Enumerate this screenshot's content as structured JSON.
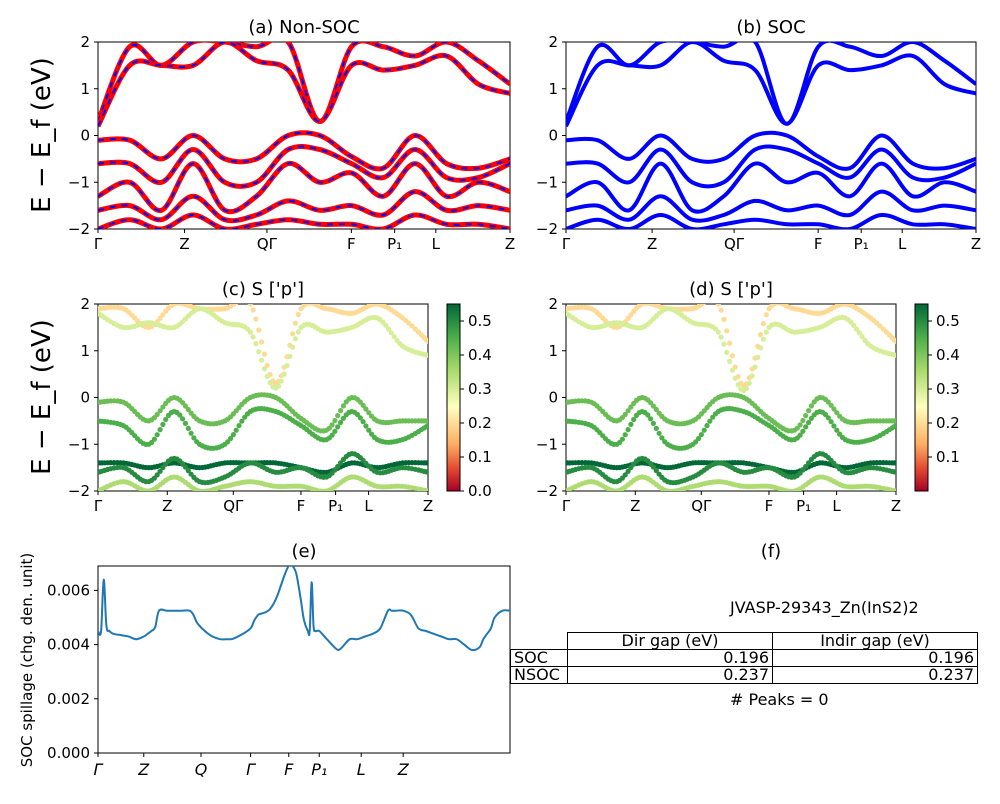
{
  "figure": {
    "ylabel": "E − E_f (eV)",
    "colors": {
      "soc_band": "#0000ff",
      "nonsoc_band": "#ff0000",
      "spillage_line": "#1f77b4"
    }
  },
  "panels": [
    {
      "id": "a",
      "title": "(a) Non-SOC",
      "yticks": [
        "2",
        "1",
        "0",
        "−1",
        "−2"
      ],
      "kpoint_labels": [
        "Γ",
        "Z",
        "QΓ",
        "F",
        "P₁",
        "L",
        "Z"
      ]
    },
    {
      "id": "b",
      "title": "(b) SOC",
      "yticks": [
        "2",
        "1",
        "0",
        "−1",
        "−2"
      ],
      "kpoint_labels": [
        "Γ",
        "Z",
        "QΓ",
        "F",
        "P₁",
        "L",
        "Z"
      ]
    },
    {
      "id": "c",
      "title": "(c)  S ['p']",
      "yticks": [
        "2",
        "1",
        "0",
        "−1",
        "−2"
      ],
      "kpoint_labels": [
        "Γ",
        "Z",
        "QΓ",
        "F",
        "P₁",
        "L",
        "Z"
      ],
      "colorbar_ticks": [
        "0.5",
        "0.4",
        "0.3",
        "0.2",
        "0.1",
        "0.0"
      ]
    },
    {
      "id": "d",
      "title": "(d) S ['p']",
      "yticks": [
        "2",
        "1",
        "0",
        "−1",
        "−2"
      ],
      "kpoint_labels": [
        "Γ",
        "Z",
        "QΓ",
        "F",
        "P₁",
        "L",
        "Z"
      ],
      "colorbar_ticks": [
        "0.5",
        "0.4",
        "0.3",
        "0.2",
        "0.1"
      ]
    },
    {
      "id": "e",
      "title": "(e)",
      "ylabel": "SOC spillage (chg. den. unit)",
      "yticks": [
        "0.006",
        "0.004",
        "0.002",
        "0.000"
      ],
      "kpoint_labels": [
        "Γ",
        "Z",
        "Q",
        "Γ",
        "F",
        "P₁",
        "L",
        "Z"
      ]
    },
    {
      "id": "f",
      "title": "(f)"
    }
  ],
  "info": {
    "material": "JVASP-29343_Zn(InS2)2",
    "table": {
      "headers": [
        "Dir gap (eV)",
        "Indir gap (eV)"
      ],
      "rows": [
        {
          "label": "SOC",
          "dir": "0.196",
          "indir": "0.196"
        },
        {
          "label": "NSOC",
          "dir": "0.237",
          "indir": "0.237"
        }
      ]
    },
    "peaks": "# Peaks = 0"
  },
  "chart_data": [
    {
      "panel": "a",
      "type": "line",
      "title": "(a) Non-SOC",
      "xlabel": "",
      "ylabel": "E − E_f (eV)",
      "ylim": [
        -2,
        2
      ],
      "x_ticks": [
        "Γ",
        "Z",
        "QΓ",
        "F",
        "P₁",
        "L",
        "Z"
      ],
      "series": [
        {
          "values": [
            0.3,
            1.9,
            1.5,
            2.0,
            2.0,
            1.9,
            2.0,
            0.3,
            1.9,
            1.9,
            1.7,
            2.0,
            1.6,
            1.1
          ]
        },
        {
          "values": [
            0.2,
            1.5,
            1.5,
            1.5,
            2.0,
            1.6,
            1.4,
            0.3,
            1.5,
            1.4,
            1.5,
            1.7,
            1.1,
            0.9
          ]
        },
        {
          "values": [
            -0.1,
            -0.1,
            -0.5,
            0.0,
            -0.5,
            -0.5,
            0.0,
            0.0,
            -0.45,
            -0.7,
            0.0,
            -0.6,
            -0.7,
            -0.5
          ]
        },
        {
          "values": [
            -0.6,
            -0.6,
            -1.0,
            -0.3,
            -1.0,
            -1.0,
            -0.3,
            -0.3,
            -0.6,
            -0.9,
            -0.3,
            -0.9,
            -0.9,
            -0.6
          ]
        },
        {
          "values": [
            -1.3,
            -1.0,
            -1.6,
            -0.6,
            -1.6,
            -1.3,
            -0.6,
            -1.0,
            -0.8,
            -1.3,
            -0.6,
            -1.3,
            -1.0,
            -1.2
          ]
        },
        {
          "values": [
            -1.6,
            -1.5,
            -1.8,
            -1.3,
            -1.8,
            -1.7,
            -1.4,
            -1.6,
            -1.5,
            -1.7,
            -1.2,
            -1.6,
            -1.5,
            -1.6
          ]
        },
        {
          "values": [
            -2.0,
            -1.8,
            -2.0,
            -1.7,
            -2.0,
            -1.9,
            -1.8,
            -1.9,
            -1.9,
            -2.0,
            -1.7,
            -1.9,
            -1.9,
            -2.0
          ]
        }
      ]
    },
    {
      "panel": "b",
      "type": "line",
      "title": "(b) SOC",
      "xlabel": "",
      "ylabel": "",
      "ylim": [
        -2,
        2
      ],
      "x_ticks": [
        "Γ",
        "Z",
        "QΓ",
        "F",
        "P₁",
        "L",
        "Z"
      ],
      "series": [
        {
          "values": [
            0.3,
            1.9,
            1.5,
            2.0,
            2.0,
            1.9,
            2.0,
            0.25,
            1.9,
            1.9,
            1.7,
            2.0,
            1.6,
            1.1
          ]
        },
        {
          "values": [
            0.2,
            1.5,
            1.5,
            1.5,
            2.0,
            1.6,
            1.4,
            0.25,
            1.5,
            1.4,
            1.5,
            1.7,
            1.1,
            0.9
          ]
        },
        {
          "values": [
            -0.1,
            -0.1,
            -0.5,
            0.0,
            -0.5,
            -0.5,
            0.0,
            0.0,
            -0.45,
            -0.7,
            0.0,
            -0.6,
            -0.7,
            -0.5
          ]
        },
        {
          "values": [
            -0.6,
            -0.6,
            -1.0,
            -0.3,
            -1.0,
            -1.0,
            -0.3,
            -0.3,
            -0.6,
            -0.9,
            -0.3,
            -0.9,
            -0.9,
            -0.6
          ]
        },
        {
          "values": [
            -1.3,
            -1.0,
            -1.6,
            -0.6,
            -1.6,
            -1.3,
            -0.6,
            -1.0,
            -0.8,
            -1.3,
            -0.6,
            -1.3,
            -1.0,
            -1.2
          ]
        },
        {
          "values": [
            -1.6,
            -1.5,
            -1.8,
            -1.3,
            -1.8,
            -1.7,
            -1.4,
            -1.6,
            -1.5,
            -1.7,
            -1.2,
            -1.6,
            -1.5,
            -1.6
          ]
        },
        {
          "values": [
            -2.0,
            -1.8,
            -2.0,
            -1.7,
            -2.0,
            -1.9,
            -1.8,
            -1.9,
            -1.9,
            -2.0,
            -1.7,
            -1.9,
            -1.9,
            -2.0
          ]
        }
      ]
    },
    {
      "panel": "c",
      "type": "scatter",
      "title": "(c)  S ['p']",
      "ylim": [
        -2,
        2
      ],
      "colorbar_range": [
        0.0,
        0.55
      ],
      "x_ticks": [
        "Γ",
        "Z",
        "QΓ",
        "F",
        "P₁",
        "L",
        "Z"
      ],
      "series": [
        {
          "values": [
            1.9,
            1.9,
            1.5,
            2.0,
            1.9,
            1.9,
            2.0,
            0.3,
            1.9,
            1.9,
            1.8,
            2.0,
            1.7,
            1.2
          ],
          "weight": 0.2
        },
        {
          "values": [
            1.8,
            1.5,
            1.6,
            1.5,
            1.9,
            1.6,
            1.4,
            0.2,
            1.5,
            1.4,
            1.5,
            1.7,
            1.1,
            0.9
          ],
          "weight": 0.3
        },
        {
          "values": [
            -0.1,
            -0.1,
            -0.5,
            0.0,
            -0.5,
            -0.5,
            0.0,
            0.0,
            -0.45,
            -0.7,
            0.0,
            -0.5,
            -0.5,
            -0.5
          ],
          "weight": 0.42
        },
        {
          "values": [
            -0.5,
            -0.6,
            -1.0,
            -0.3,
            -1.0,
            -1.0,
            -0.3,
            -0.3,
            -0.6,
            -0.9,
            -0.3,
            -0.9,
            -0.9,
            -0.6
          ],
          "weight": 0.45
        },
        {
          "values": [
            -1.4,
            -1.4,
            -1.5,
            -1.4,
            -1.5,
            -1.4,
            -1.4,
            -1.4,
            -1.5,
            -1.6,
            -1.4,
            -1.5,
            -1.4,
            -1.4
          ],
          "weight": 0.55
        },
        {
          "values": [
            -1.6,
            -1.5,
            -1.8,
            -1.3,
            -1.8,
            -1.7,
            -1.4,
            -1.6,
            -1.5,
            -1.7,
            -1.2,
            -1.6,
            -1.5,
            -1.6
          ],
          "weight": 0.5
        },
        {
          "values": [
            -2.0,
            -1.8,
            -2.0,
            -1.7,
            -2.0,
            -1.9,
            -1.8,
            -1.9,
            -1.9,
            -2.0,
            -1.7,
            -1.9,
            -1.9,
            -2.0
          ],
          "weight": 0.35
        }
      ]
    },
    {
      "panel": "d",
      "type": "scatter",
      "title": "(d) S ['p']",
      "ylim": [
        -2,
        2
      ],
      "colorbar_range": [
        0.0,
        0.55
      ],
      "x_ticks": [
        "Γ",
        "Z",
        "QΓ",
        "F",
        "P₁",
        "L",
        "Z"
      ],
      "series": [
        {
          "values": [
            1.9,
            1.9,
            1.5,
            2.0,
            1.9,
            1.9,
            2.0,
            0.25,
            1.9,
            1.9,
            1.8,
            2.0,
            1.7,
            1.2
          ],
          "weight": 0.2
        },
        {
          "values": [
            1.8,
            1.5,
            1.6,
            1.5,
            1.9,
            1.6,
            1.4,
            0.15,
            1.5,
            1.4,
            1.5,
            1.7,
            1.1,
            0.9
          ],
          "weight": 0.3
        },
        {
          "values": [
            -0.1,
            -0.1,
            -0.5,
            0.0,
            -0.5,
            -0.5,
            0.0,
            0.0,
            -0.45,
            -0.7,
            0.0,
            -0.5,
            -0.5,
            -0.5
          ],
          "weight": 0.42
        },
        {
          "values": [
            -0.5,
            -0.6,
            -1.0,
            -0.3,
            -1.0,
            -1.0,
            -0.3,
            -0.3,
            -0.6,
            -0.9,
            -0.3,
            -0.9,
            -0.9,
            -0.6
          ],
          "weight": 0.45
        },
        {
          "values": [
            -1.4,
            -1.4,
            -1.5,
            -1.4,
            -1.5,
            -1.4,
            -1.4,
            -1.4,
            -1.5,
            -1.6,
            -1.4,
            -1.5,
            -1.4,
            -1.4
          ],
          "weight": 0.55
        },
        {
          "values": [
            -1.6,
            -1.5,
            -1.8,
            -1.3,
            -1.8,
            -1.7,
            -1.4,
            -1.6,
            -1.5,
            -1.7,
            -1.2,
            -1.6,
            -1.5,
            -1.6
          ],
          "weight": 0.5
        },
        {
          "values": [
            -2.0,
            -1.8,
            -2.0,
            -1.7,
            -2.0,
            -1.9,
            -1.8,
            -1.9,
            -1.9,
            -2.0,
            -1.7,
            -1.9,
            -1.9,
            -2.0
          ],
          "weight": 0.35
        }
      ]
    },
    {
      "panel": "e",
      "type": "line",
      "title": "(e)",
      "ylabel": "SOC spillage (chg. den. unit)",
      "ylim": [
        0,
        0.0069
      ],
      "x_ticks": [
        "Γ",
        "Z",
        "Q",
        "Γ",
        "F",
        "P₁",
        "L",
        "Z"
      ],
      "x_range": [
        0,
        108
      ],
      "series": [
        {
          "x": [
            0,
            0.8,
            1.5,
            2.2,
            3,
            4,
            6,
            8,
            10,
            12,
            13,
            14,
            15,
            16,
            18,
            20,
            22,
            24,
            25,
            26,
            28,
            30,
            32,
            34,
            35,
            36,
            38,
            40,
            41,
            42,
            43,
            44,
            45,
            46,
            47,
            48,
            49,
            50,
            51,
            52,
            53,
            54,
            55,
            55.5,
            56,
            56.5,
            57,
            58,
            60,
            62,
            63,
            64,
            66,
            68,
            70,
            72,
            74,
            76,
            77,
            78,
            80,
            82,
            84,
            86,
            88,
            90,
            92,
            94,
            96,
            98,
            100,
            101,
            102,
            103,
            104,
            106,
            108
          ],
          "y": [
            0.0045,
            0.0045,
            0.0064,
            0.0047,
            0.0045,
            0.0044,
            0.00435,
            0.0043,
            0.0042,
            0.0043,
            0.0044,
            0.0045,
            0.00465,
            0.00525,
            0.00525,
            0.00525,
            0.00525,
            0.00525,
            0.0051,
            0.0048,
            0.0045,
            0.0043,
            0.0042,
            0.0042,
            0.0042,
            0.00425,
            0.0044,
            0.0046,
            0.0049,
            0.0051,
            0.00515,
            0.0052,
            0.0053,
            0.0055,
            0.0058,
            0.0062,
            0.0066,
            0.0069,
            0.0069,
            0.0066,
            0.0058,
            0.0049,
            0.0045,
            0.0045,
            0.0063,
            0.0047,
            0.0045,
            0.0045,
            0.0042,
            0.0039,
            0.0038,
            0.0039,
            0.0042,
            0.0042,
            0.0043,
            0.0044,
            0.0046,
            0.00525,
            0.00525,
            0.00525,
            0.00525,
            0.0051,
            0.0046,
            0.0045,
            0.0044,
            0.0043,
            0.0042,
            0.0042,
            0.004,
            0.0038,
            0.0039,
            0.0042,
            0.0044,
            0.0046,
            0.005,
            0.00525,
            0.00525
          ]
        }
      ]
    }
  ]
}
